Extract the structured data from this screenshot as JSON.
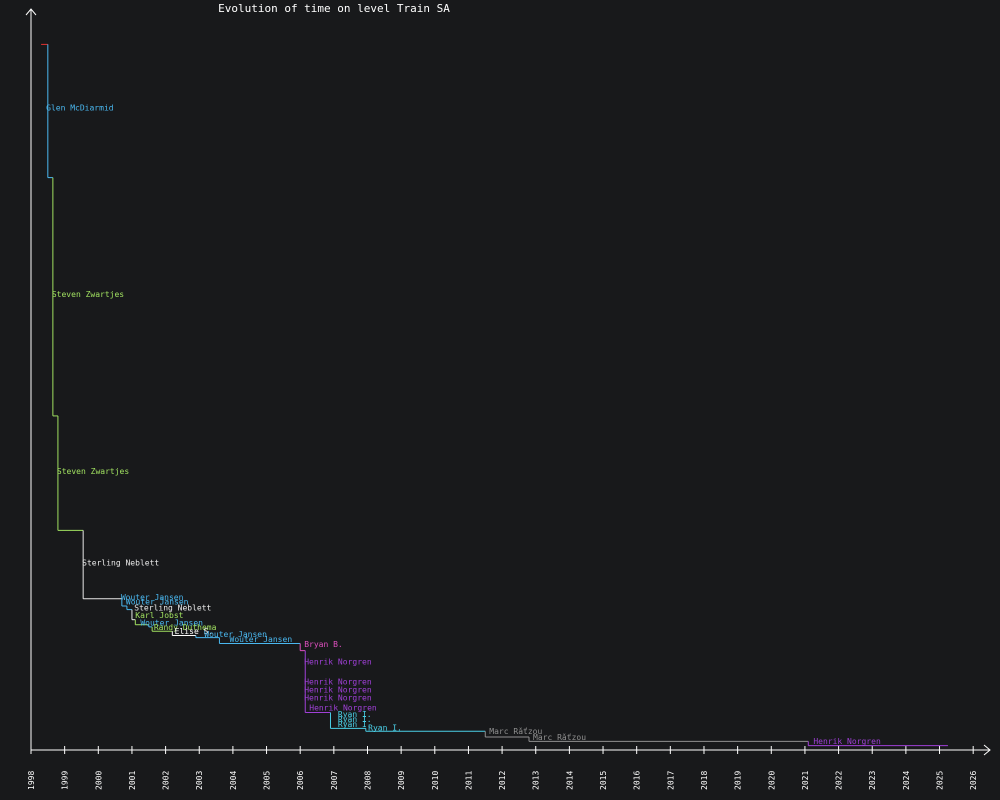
{
  "chart_data": {
    "type": "line",
    "title": "Evolution of time on level Train SA",
    "xlabel": "",
    "ylabel": "",
    "xlim": [
      1998.0,
      2026.5
    ],
    "ylim": [
      0,
      1000
    ],
    "x_ticks": [
      "1998",
      "1999",
      "2000",
      "2001",
      "2002",
      "2003",
      "2004",
      "2005",
      "2006",
      "2007",
      "2008",
      "2009",
      "2010",
      "2011",
      "2012",
      "2013",
      "2014",
      "2015",
      "2016",
      "2017",
      "2018",
      "2019",
      "2020",
      "2021",
      "2022",
      "2023",
      "2024",
      "2025",
      "2026"
    ],
    "grid": false,
    "legend": "none",
    "series": [
      {
        "name": "Glen McDiarmid",
        "color": "#4ab8f0",
        "start": 1998.3,
        "end": 1998.5,
        "value": 980
      },
      {
        "name": "Glen McDiarmid",
        "color": "#4ab8f0",
        "start": 1998.5,
        "end": 1998.65,
        "value": 795
      },
      {
        "name": "Steven Zwartjes",
        "color": "#a0e060",
        "start": 1998.65,
        "end": 1998.8,
        "value": 464
      },
      {
        "name": "Steven Zwartjes",
        "color": "#a0e060",
        "start": 1998.8,
        "end": 1999.55,
        "value": 305
      },
      {
        "name": "Sterling Neblett",
        "color": "#e8e8e8",
        "start": 1999.55,
        "end": 2000.7,
        "value": 210
      },
      {
        "name": "Wouter Jansen",
        "color": "#4ab8f0",
        "start": 2000.7,
        "end": 2000.85,
        "value": 200
      },
      {
        "name": "Wouter Jansen",
        "color": "#4ab8f0",
        "start": 2000.85,
        "end": 2001.0,
        "value": 195
      },
      {
        "name": "Sterling Neblett",
        "color": "#e8e8e8",
        "start": 2001.0,
        "end": 2001.1,
        "value": 181
      },
      {
        "name": "Karl Jobst",
        "color": "#a0e060",
        "start": 2001.1,
        "end": 2001.5,
        "value": 174
      },
      {
        "name": "Wouter Jansen",
        "color": "#4ab8f0",
        "start": 2001.5,
        "end": 2001.6,
        "value": 171
      },
      {
        "name": "Randy Duthema",
        "color": "#a0e060",
        "start": 2001.6,
        "end": 2002.2,
        "value": 165
      },
      {
        "name": "Elise S.",
        "color": "#ffffff",
        "start": 2002.2,
        "end": 2002.9,
        "value": 159
      },
      {
        "name": "Wouter Jansen",
        "color": "#4ab8f0",
        "start": 2002.9,
        "end": 2003.6,
        "value": 156
      },
      {
        "name": "Wouter Jansen",
        "color": "#4ab8f0",
        "start": 2003.6,
        "end": 2006.0,
        "value": 148
      },
      {
        "name": "Bryan B.",
        "color": "#e050c0",
        "start": 2006.0,
        "end": 2006.15,
        "value": 138
      },
      {
        "name": "Henrik Norgren",
        "color": "#a040d8",
        "start": 2006.15,
        "end": 2006.9,
        "value": 52
      },
      {
        "name": "Ryan I.",
        "color": "#4ad0e8",
        "start": 2006.9,
        "end": 2007.95,
        "value": 30
      },
      {
        "name": "Ryan I.",
        "color": "#4ad0e8",
        "start": 2007.95,
        "end": 2011.5,
        "value": 26
      },
      {
        "name": "Marc Rǎťzou",
        "color": "#909090",
        "start": 2011.5,
        "end": 2012.8,
        "value": 18
      },
      {
        "name": "Marc Rǎťzou",
        "color": "#909090",
        "start": 2012.8,
        "end": 2021.1,
        "value": 12
      },
      {
        "name": "Henrik Norgren",
        "color": "#a040d8",
        "start": 2021.1,
        "end": 2025.25,
        "value": 6
      }
    ],
    "labels": [
      {
        "text": "Glen McDiarmid",
        "color": "#4ab8f0",
        "x": 1998.45,
        "y": 888
      },
      {
        "text": "Steven Zwartjes",
        "color": "#a0e060",
        "x": 1998.62,
        "y": 629
      },
      {
        "text": "Steven Zwartjes",
        "color": "#a0e060",
        "x": 1998.77,
        "y": 383
      },
      {
        "text": "Sterling Neblett",
        "color": "#e8e8e8",
        "x": 1999.52,
        "y": 256
      },
      {
        "text": "Wouter Jansen",
        "color": "#4ab8f0",
        "x": 2000.67,
        "y": 208
      },
      {
        "text": "Wouter Jansen",
        "color": "#4ab8f0",
        "x": 2000.82,
        "y": 202
      },
      {
        "text": "Sterling Neblett",
        "color": "#e8e8e8",
        "x": 2001.07,
        "y": 194
      },
      {
        "text": "Karl Jobst",
        "color": "#a0e060",
        "x": 2001.1,
        "y": 183
      },
      {
        "text": "Wouter Jansen",
        "color": "#4ab8f0",
        "x": 2001.25,
        "y": 173
      },
      {
        "text": "Randy Duthema",
        "color": "#a0e060",
        "x": 2001.65,
        "y": 167
      },
      {
        "text": "Elise S.",
        "color": "#ffffff",
        "x": 2002.27,
        "y": 161
      },
      {
        "text": "Wouter Jansen",
        "color": "#4ab8f0",
        "x": 2003.15,
        "y": 157
      },
      {
        "text": "Wouter Jansen",
        "color": "#4ab8f0",
        "x": 2003.9,
        "y": 150
      },
      {
        "text": "Bryan B.",
        "color": "#e050c0",
        "x": 2006.12,
        "y": 143
      },
      {
        "text": "Henrik Norgren",
        "color": "#a040d8",
        "x": 2006.12,
        "y": 119
      },
      {
        "text": "Henrik Norgren",
        "color": "#a040d8",
        "x": 2006.12,
        "y": 91
      },
      {
        "text": "Henrik Norgren",
        "color": "#a040d8",
        "x": 2006.12,
        "y": 80
      },
      {
        "text": "Henrik Norgren",
        "color": "#a040d8",
        "x": 2006.12,
        "y": 69
      },
      {
        "text": "Henrik Norgren",
        "color": "#a040d8",
        "x": 2006.27,
        "y": 55
      },
      {
        "text": "Ryan I.",
        "color": "#4ad0e8",
        "x": 2007.12,
        "y": 46
      },
      {
        "text": "Ryan I.",
        "color": "#4ad0e8",
        "x": 2007.12,
        "y": 39
      },
      {
        "text": "Ryan I.",
        "color": "#4ad0e8",
        "x": 2007.12,
        "y": 32
      },
      {
        "text": "Ryan I.",
        "color": "#4ad0e8",
        "x": 2008.02,
        "y": 27
      },
      {
        "text": "Marc Rǎťzou",
        "color": "#909090",
        "x": 2011.62,
        "y": 22
      },
      {
        "text": "Marc Rǎťzou",
        "color": "#909090",
        "x": 2012.92,
        "y": 14
      },
      {
        "text": "Henrik Norgren",
        "color": "#a040d8",
        "x": 2021.25,
        "y": 8
      }
    ]
  }
}
